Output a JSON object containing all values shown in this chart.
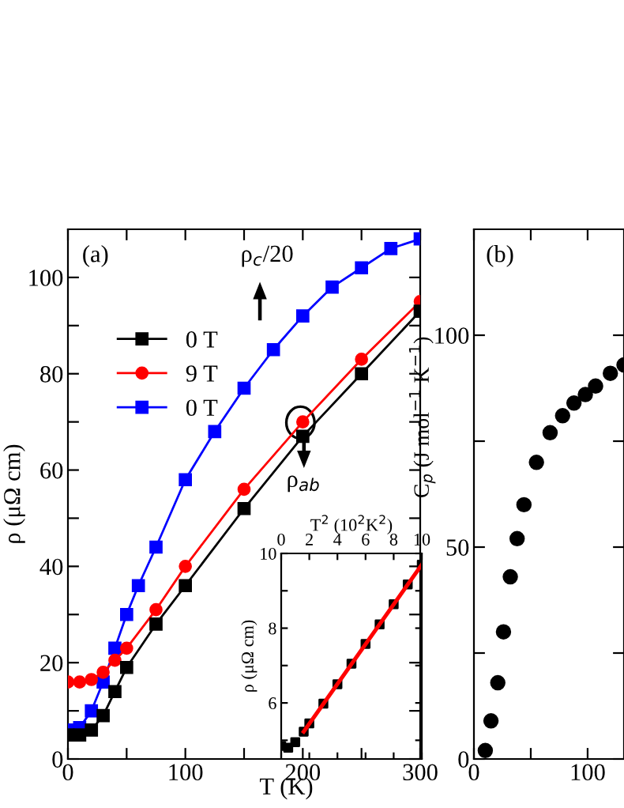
{
  "chart_data": [
    {
      "type": "line",
      "xlabel": "T (K)",
      "ylabel": "ρ (μΩ cm)",
      "xlim": [
        0,
        300
      ],
      "ylim": [
        0,
        110
      ],
      "xticks": [
        0,
        {
          "value": 50,
          "label": null
        },
        100,
        {
          "value": 150,
          "label": null
        },
        200,
        {
          "value": 250,
          "label": null
        },
        300
      ],
      "yticks": [
        0,
        {
          "value": 10,
          "label": null
        },
        20,
        {
          "value": 30,
          "label": null
        },
        40,
        {
          "value": 50,
          "label": null
        },
        60,
        {
          "value": 70,
          "label": null
        },
        80,
        {
          "value": 90,
          "label": null
        },
        100
      ],
      "legend": "top left",
      "annotations": [
        "(a)",
        "ρ$_{c}$/20",
        "ρ$_{ab}$"
      ],
      "series": [
        {
          "name": "0 T",
          "color": "#000000",
          "marker": "square",
          "x": [
            0,
            10,
            20,
            30,
            40,
            50,
            75,
            100,
            150,
            200,
            250,
            300
          ],
          "values": [
            5,
            5,
            6,
            9,
            14,
            19,
            28,
            36,
            52,
            67,
            80,
            93
          ]
        },
        {
          "name": "9 T",
          "color": "#ff0000",
          "marker": "circle",
          "x": [
            0,
            10,
            20,
            30,
            40,
            50,
            75,
            100,
            150,
            200,
            250,
            300
          ],
          "values": [
            16,
            16,
            16.5,
            18,
            20.5,
            23,
            31,
            40,
            56,
            70,
            83,
            95
          ]
        },
        {
          "name": "0 T",
          "color": "#0000ff",
          "marker": "square",
          "x": [
            0,
            10,
            20,
            30,
            40,
            50,
            60,
            75,
            100,
            125,
            150,
            175,
            200,
            225,
            250,
            275,
            300
          ],
          "values": [
            6,
            6.5,
            10,
            16,
            23,
            30,
            36,
            44,
            58,
            68,
            77,
            85,
            92,
            98,
            102,
            106,
            108
          ]
        }
      ]
    },
    {
      "type": "scatter",
      "xlabel": "T$^{2}$ (10$^{2}$K$^{2}$)",
      "ylabel": "ρ (μΩ cm)",
      "xlim": [
        0,
        10
      ],
      "ylim": [
        4.5,
        10
      ],
      "xticks": [
        0,
        2,
        4,
        6,
        8,
        10
      ],
      "yticks": [
        {
          "value": 5,
          "label": null
        },
        6,
        {
          "value": 7,
          "label": null
        },
        8,
        {
          "value": 9,
          "label": null
        },
        10
      ],
      "series": [
        {
          "color": "#000000",
          "marker": "square",
          "x": [
            0,
            0.5,
            1,
            1.6,
            2,
            3,
            4,
            5,
            6,
            7,
            8,
            9,
            10
          ],
          "values": [
            4.85,
            4.8,
            4.95,
            5.23,
            5.45,
            5.98,
            6.5,
            7.05,
            7.58,
            8.1,
            8.64,
            9.17,
            9.7
          ]
        },
        {
          "type": "line",
          "color": "#ff0000",
          "marker": "none",
          "x": [
            1.6,
            10
          ],
          "values": [
            5.23,
            9.7
          ]
        }
      ]
    },
    {
      "type": "scatter",
      "ylabel": "C$_{p}$ (J mol$^{−1}$ K$^{−1}$)",
      "xlim": [
        0,
        132
      ],
      "ylim": [
        0,
        125
      ],
      "xticks": [
        0,
        {
          "value": 50,
          "label": null
        },
        100
      ],
      "yticks": [
        0,
        {
          "value": 25,
          "label": null
        },
        50,
        {
          "value": 75,
          "label": null
        },
        100
      ],
      "annotations": [
        "(b)"
      ],
      "series": [
        {
          "color": "#000000",
          "marker": "circle",
          "x": [
            10,
            15,
            21,
            26,
            32,
            38,
            44,
            55,
            67,
            78,
            88,
            98,
            107,
            120,
            132
          ],
          "values": [
            2,
            9,
            18,
            30,
            43,
            52,
            60,
            70,
            77,
            81,
            84,
            86,
            88,
            91,
            93
          ]
        }
      ]
    }
  ]
}
